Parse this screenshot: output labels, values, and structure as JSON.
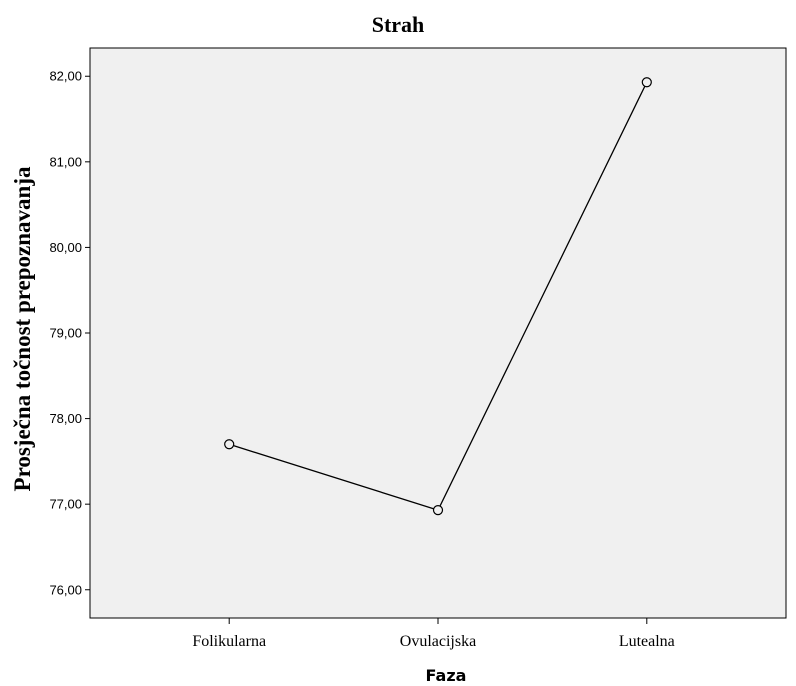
{
  "chart_data": {
    "type": "line",
    "title": "Strah",
    "xlabel": "Faza",
    "ylabel": "Prosječna točnost prepoznavanja",
    "categories": [
      "Folikularna",
      "Ovulacijska",
      "Lutealna"
    ],
    "series": [
      {
        "values": [
          77.7,
          76.93,
          81.93
        ]
      }
    ],
    "ylim": [
      75.67,
      82.33
    ],
    "yticks": [
      76.0,
      77.0,
      78.0,
      79.0,
      80.0,
      81.0,
      82.0
    ],
    "ytick_labels": [
      "76,00",
      "77,00",
      "78,00",
      "79,00",
      "80,00",
      "81,00",
      "82,00"
    ],
    "grid": false,
    "legend": "none",
    "colors": {
      "plot_background": "#f0f0f0",
      "line": "#000000",
      "marker_fill": "#f0f0f0"
    }
  }
}
